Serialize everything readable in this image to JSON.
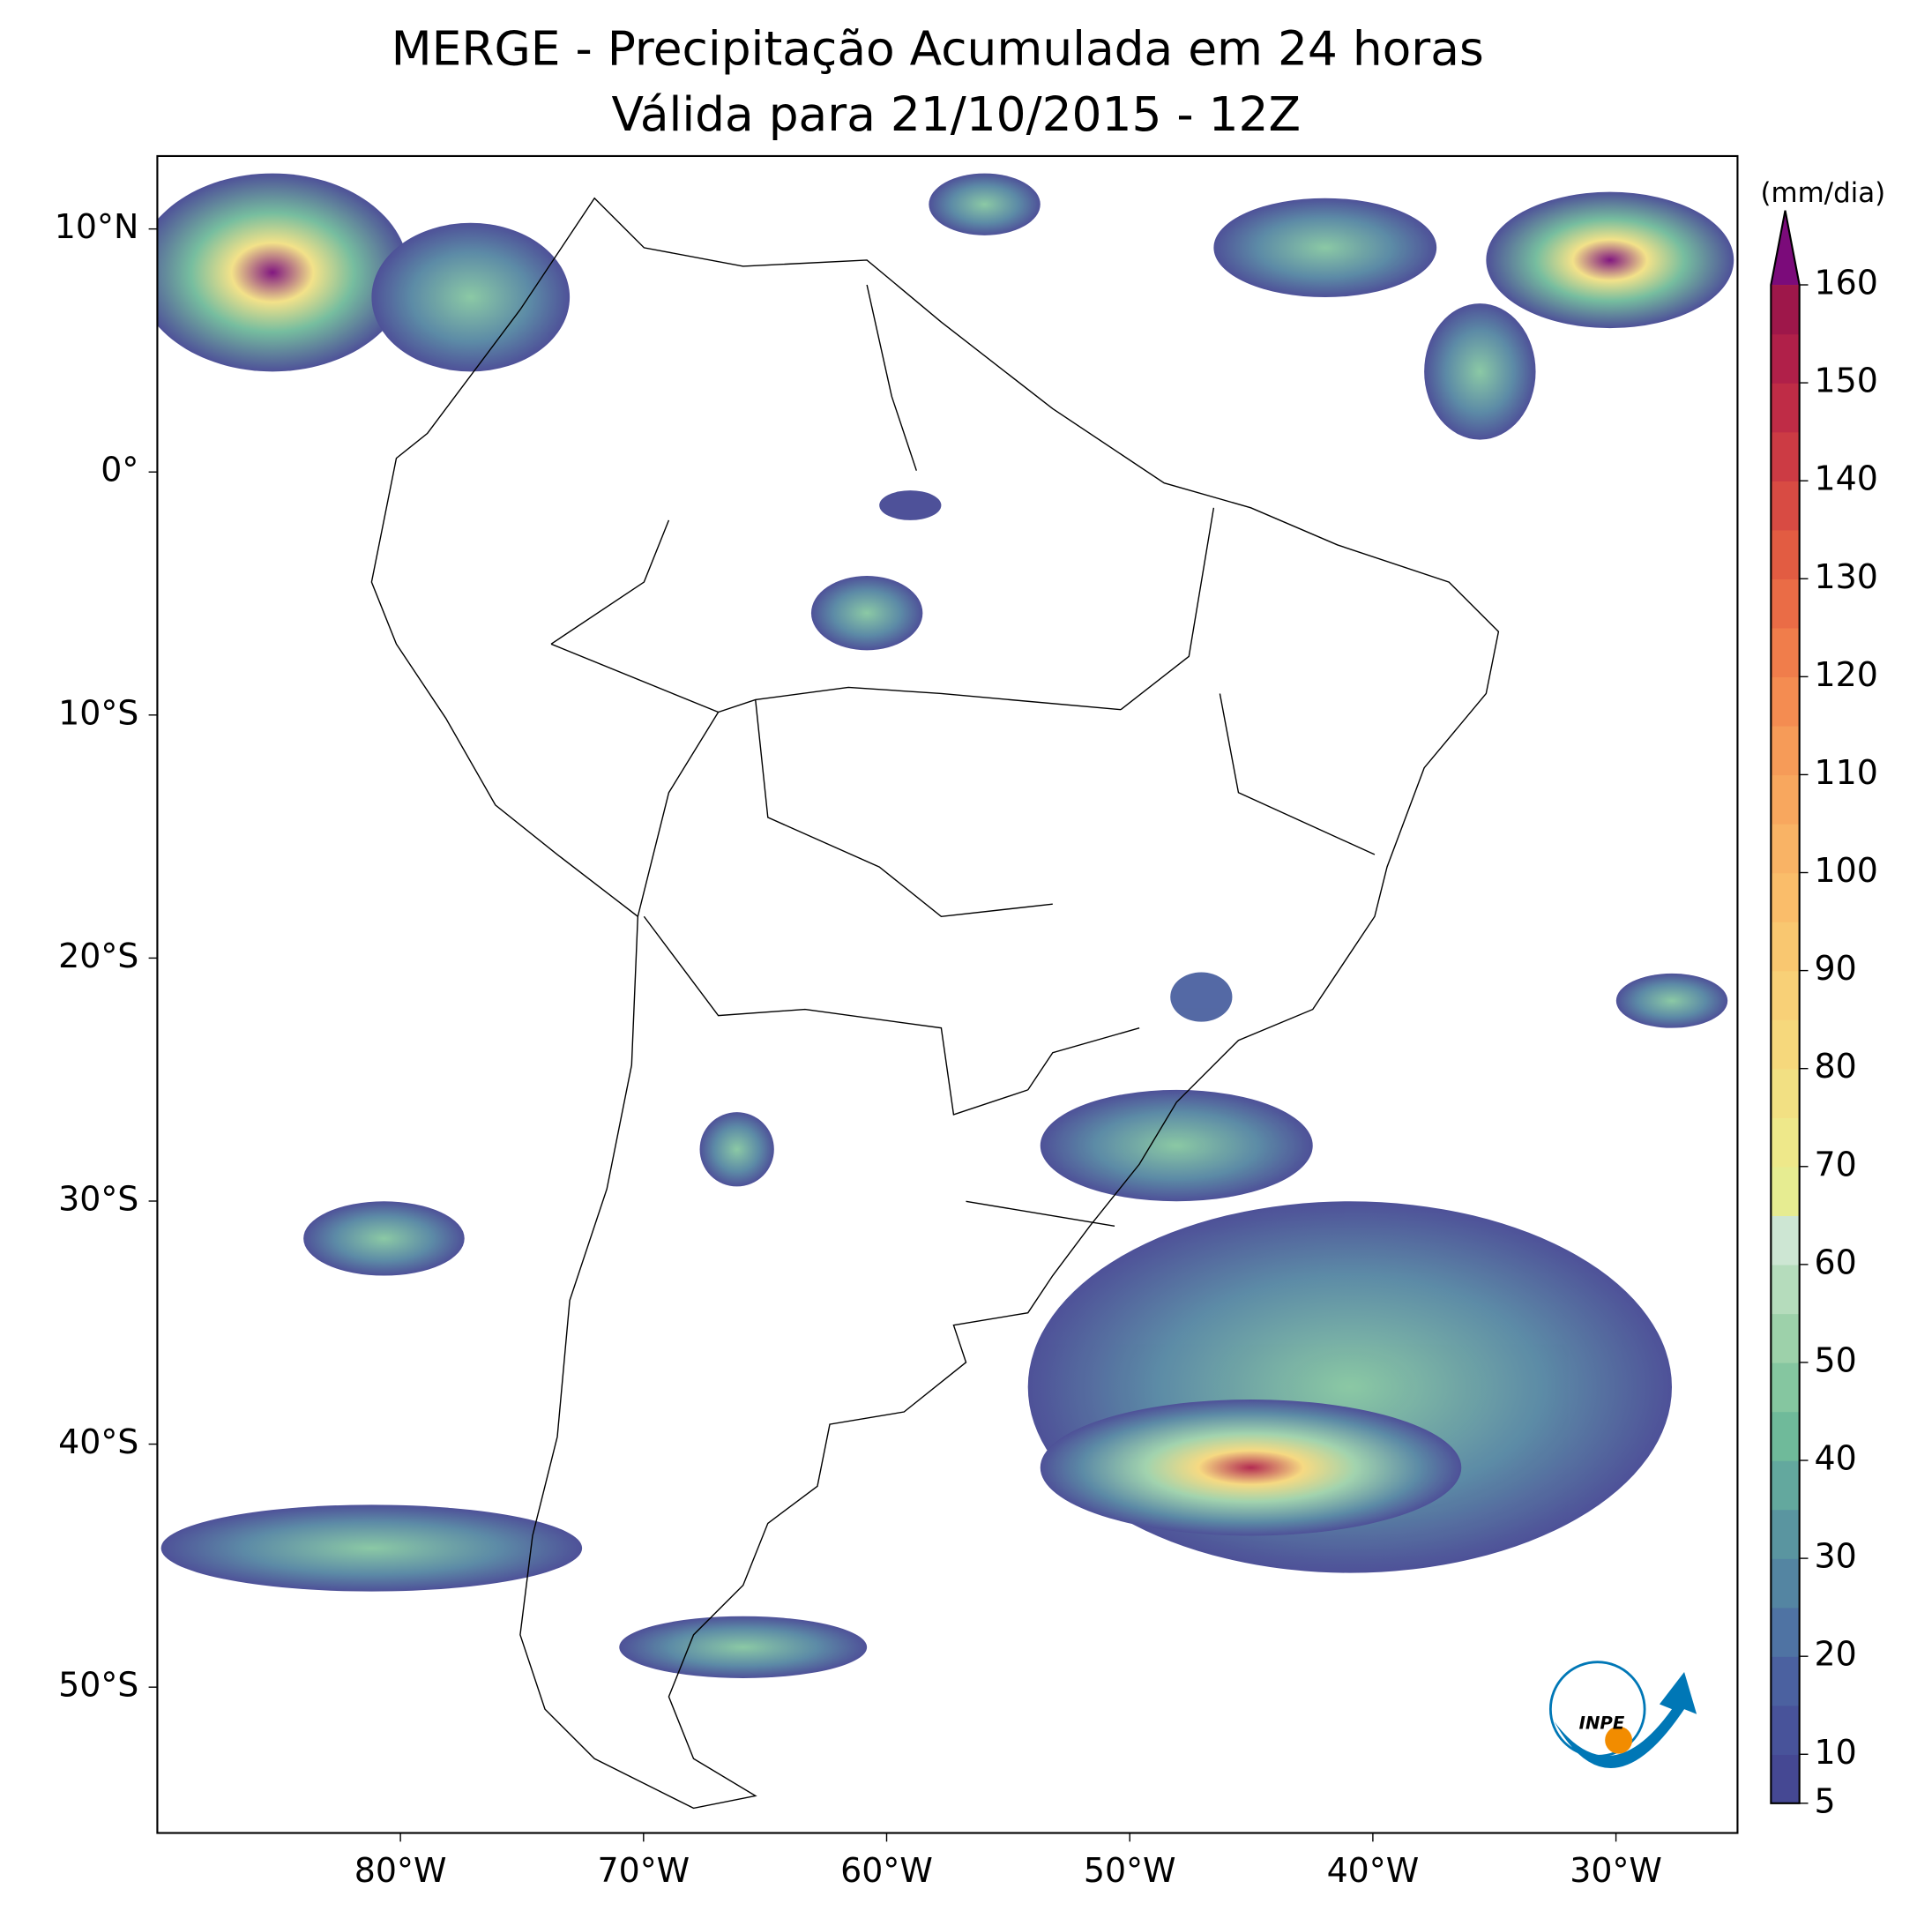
{
  "title": "MERGE - Precipitação Acumulada em 24 horas",
  "subtitle": "Válida para 21/10/2015 - 12Z",
  "map": {
    "xlim": [
      -90,
      -25
    ],
    "ylim": [
      -56,
      13
    ],
    "xticks": [
      {
        "value": -80,
        "label": "80°W"
      },
      {
        "value": -70,
        "label": "70°W"
      },
      {
        "value": -60,
        "label": "60°W"
      },
      {
        "value": -50,
        "label": "50°W"
      },
      {
        "value": -40,
        "label": "40°W"
      },
      {
        "value": -30,
        "label": "30°W"
      }
    ],
    "yticks": [
      {
        "value": 10,
        "label": "10°N"
      },
      {
        "value": 0,
        "label": "0°"
      },
      {
        "value": -10,
        "label": "10°S"
      },
      {
        "value": -20,
        "label": "20°S"
      },
      {
        "value": -30,
        "label": "30°S"
      },
      {
        "value": -40,
        "label": "40°S"
      },
      {
        "value": -50,
        "label": "50°S"
      }
    ]
  },
  "colorbar": {
    "label": "(mm/dia)",
    "lim": [
      5,
      160
    ],
    "ticks": [
      5,
      10,
      20,
      30,
      40,
      50,
      60,
      70,
      80,
      90,
      100,
      110,
      120,
      130,
      140,
      150,
      160
    ],
    "colors": [
      "#454893",
      "#48539a",
      "#4b61a0",
      "#4f73a3",
      "#5485a2",
      "#5a95a0",
      "#63a89e",
      "#6fba9a",
      "#85c6a0",
      "#9dd1aa",
      "#b5dcbc",
      "#cde6d3",
      "#e6ec91",
      "#eee88a",
      "#f2e083",
      "#f6d87c",
      "#f8d077",
      "#f9c770",
      "#fabd6a",
      "#f9b365",
      "#f8a75e",
      "#f69b58",
      "#f48c51",
      "#f07d4b",
      "#ea6c46",
      "#e25c42",
      "#d84b43",
      "#cc3b44",
      "#bf2c46",
      "#b02049",
      "#9e174a"
    ],
    "extend_color": "#7b0b7a"
  },
  "logo": {
    "text": "INPE"
  }
}
